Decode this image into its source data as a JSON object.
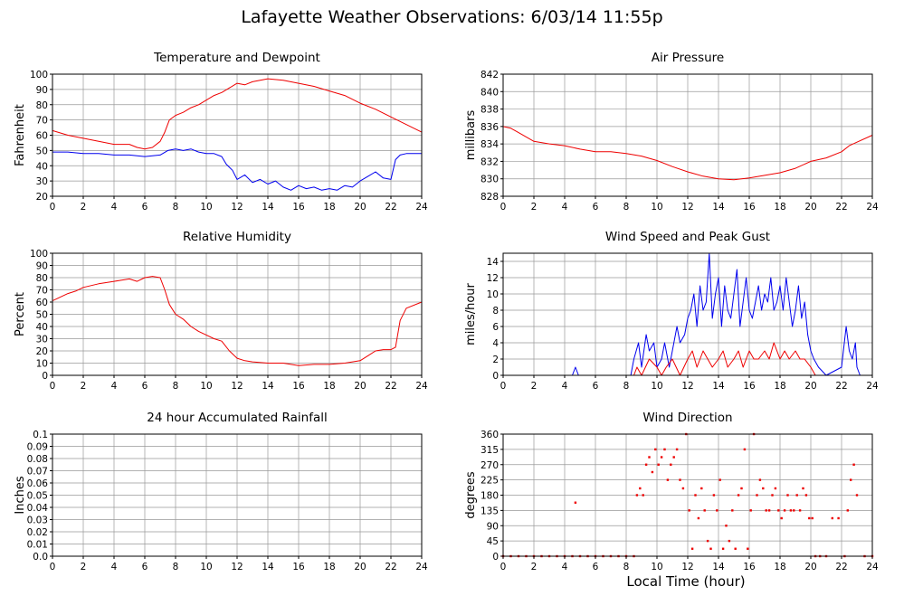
{
  "title": "Lafayette Weather Observations: 6/03/14 11:55p",
  "xlabel": "Local Time (hour)",
  "colors": {
    "series_red": "#ee0000",
    "series_blue": "#0000ee",
    "grid": "#999999",
    "frame": "#000000"
  },
  "chart_data": [
    {
      "id": "temp",
      "type": "line",
      "title": "Temperature and Dewpoint",
      "ylabel": "Fahrenheit",
      "xlim": [
        0,
        24
      ],
      "ylim": [
        20,
        100
      ],
      "xticks": [
        0,
        2,
        4,
        6,
        8,
        10,
        12,
        14,
        16,
        18,
        20,
        22,
        24
      ],
      "yticks": [
        20,
        30,
        40,
        50,
        60,
        70,
        80,
        90,
        100
      ],
      "series": [
        {
          "color": "red",
          "x": [
            0,
            1,
            2,
            3,
            4,
            5,
            5.5,
            6,
            6.5,
            7,
            7.3,
            7.6,
            8,
            8.5,
            9,
            9.5,
            10,
            10.5,
            11,
            11.5,
            12,
            12.5,
            13,
            13.5,
            14,
            15,
            16,
            17,
            18,
            19,
            20,
            21,
            22,
            23,
            24
          ],
          "y": [
            63,
            60,
            58,
            56,
            54,
            54,
            52,
            51,
            52,
            56,
            62,
            70,
            73,
            75,
            78,
            80,
            83,
            86,
            88,
            91,
            94,
            93,
            95,
            96,
            97,
            96,
            94,
            92,
            89,
            86,
            81,
            77,
            72,
            67,
            62
          ]
        },
        {
          "color": "blue",
          "x": [
            0,
            1,
            2,
            3,
            4,
            5,
            6,
            7,
            7.5,
            8,
            8.5,
            9,
            9.5,
            10,
            10.5,
            11,
            11.3,
            11.7,
            12,
            12.5,
            13,
            13.5,
            14,
            14.5,
            15,
            15.5,
            16,
            16.5,
            17,
            17.5,
            18,
            18.5,
            19,
            19.5,
            20,
            20.5,
            21,
            21.5,
            22,
            22.3,
            22.6,
            23,
            24
          ],
          "y": [
            49,
            49,
            48,
            48,
            47,
            47,
            46,
            47,
            50,
            51,
            50,
            51,
            49,
            48,
            48,
            46,
            41,
            37,
            31,
            34,
            29,
            31,
            28,
            30,
            26,
            24,
            27,
            25,
            26,
            24,
            25,
            24,
            27,
            26,
            30,
            33,
            36,
            32,
            31,
            44,
            47,
            48,
            48
          ]
        }
      ]
    },
    {
      "id": "pressure",
      "type": "line",
      "title": "Air Pressure",
      "ylabel": "millibars",
      "xlim": [
        0,
        24
      ],
      "ylim": [
        828,
        842
      ],
      "xticks": [
        0,
        2,
        4,
        6,
        8,
        10,
        12,
        14,
        16,
        18,
        20,
        22,
        24
      ],
      "yticks": [
        828,
        830,
        832,
        834,
        836,
        838,
        840,
        842
      ],
      "series": [
        {
          "color": "red",
          "x": [
            0,
            0.5,
            1,
            1.5,
            2,
            3,
            4,
            5,
            6,
            7,
            8,
            9,
            10,
            11,
            12,
            13,
            14,
            15,
            16,
            17,
            18,
            19,
            20,
            21,
            22,
            22.5,
            23,
            24
          ],
          "y": [
            836,
            835.8,
            835.3,
            834.8,
            834.3,
            834,
            833.8,
            833.4,
            833.1,
            833.1,
            832.9,
            832.6,
            832.1,
            831.4,
            830.8,
            830.3,
            830,
            829.9,
            830.1,
            830.4,
            830.7,
            831.2,
            832,
            832.4,
            833.1,
            833.8,
            834.2,
            835
          ]
        }
      ]
    },
    {
      "id": "humidity",
      "type": "line",
      "title": "Relative Humidity",
      "ylabel": "Percent",
      "xlim": [
        0,
        24
      ],
      "ylim": [
        0,
        100
      ],
      "xticks": [
        0,
        2,
        4,
        6,
        8,
        10,
        12,
        14,
        16,
        18,
        20,
        22,
        24
      ],
      "yticks": [
        0,
        10,
        20,
        30,
        40,
        50,
        60,
        70,
        80,
        90,
        100
      ],
      "series": [
        {
          "color": "red",
          "x": [
            0,
            0.5,
            1,
            1.5,
            2,
            3,
            4,
            4.5,
            5,
            5.5,
            6,
            6.5,
            7,
            7.3,
            7.6,
            8,
            8.5,
            9,
            9.5,
            10,
            10.5,
            11,
            11.5,
            12,
            12.5,
            13,
            14,
            15,
            16,
            17,
            18,
            19,
            20,
            20.5,
            21,
            21.5,
            22,
            22.3,
            22.6,
            23,
            24
          ],
          "y": [
            61,
            64,
            67,
            69,
            72,
            75,
            77,
            78,
            79,
            77,
            80,
            81,
            80,
            70,
            58,
            50,
            46,
            40,
            36,
            33,
            30,
            28,
            20,
            14,
            12,
            11,
            10,
            10,
            8,
            9,
            9,
            10,
            12,
            16,
            20,
            21,
            21,
            23,
            45,
            55,
            60
          ]
        }
      ]
    },
    {
      "id": "wind",
      "type": "line",
      "title": "Wind Speed and Peak Gust",
      "ylabel": "miles/hour",
      "xlim": [
        0,
        24
      ],
      "ylim": [
        0,
        15
      ],
      "xticks": [
        0,
        2,
        4,
        6,
        8,
        10,
        12,
        14,
        16,
        18,
        20,
        22,
        24
      ],
      "yticks": [
        0,
        2,
        4,
        6,
        8,
        10,
        12,
        14
      ],
      "series": [
        {
          "color": "blue",
          "x": [
            0,
            4.5,
            4.7,
            4.9,
            8.3,
            8.5,
            8.8,
            9,
            9.3,
            9.5,
            9.8,
            10,
            10.3,
            10.5,
            10.8,
            11,
            11.3,
            11.5,
            11.8,
            12,
            12.2,
            12.4,
            12.6,
            12.8,
            13,
            13.2,
            13.4,
            13.6,
            13.8,
            14,
            14.2,
            14.4,
            14.6,
            14.8,
            15,
            15.2,
            15.4,
            15.6,
            15.8,
            16,
            16.2,
            16.4,
            16.6,
            16.8,
            17,
            17.2,
            17.4,
            17.6,
            17.8,
            18,
            18.2,
            18.4,
            18.6,
            18.8,
            19,
            19.2,
            19.4,
            19.6,
            19.8,
            20,
            20.2,
            20.5,
            21,
            22,
            22.3,
            22.5,
            22.7,
            22.9,
            23,
            23.2,
            24
          ],
          "y": [
            0,
            0,
            1,
            0,
            0,
            2,
            4,
            1,
            5,
            3,
            4,
            1,
            2,
            4,
            1,
            3,
            6,
            4,
            5,
            7,
            8,
            10,
            6,
            11,
            8,
            9,
            15,
            7,
            10,
            12,
            6,
            11,
            8,
            7,
            10,
            13,
            6,
            9,
            12,
            8,
            7,
            9,
            11,
            8,
            10,
            9,
            12,
            8,
            9,
            11,
            8,
            12,
            9,
            6,
            8,
            11,
            7,
            9,
            5,
            3,
            2,
            1,
            0,
            1,
            6,
            3,
            2,
            4,
            1,
            0,
            0
          ]
        },
        {
          "color": "red",
          "x": [
            0,
            8.5,
            8.7,
            9,
            9.5,
            10,
            10.3,
            10.6,
            11,
            11.5,
            12,
            12.3,
            12.6,
            13,
            13.3,
            13.6,
            14,
            14.3,
            14.6,
            15,
            15.3,
            15.6,
            16,
            16.3,
            16.6,
            17,
            17.3,
            17.6,
            18,
            18.3,
            18.6,
            19,
            19.3,
            19.6,
            20,
            20.3,
            24
          ],
          "y": [
            0,
            0,
            1,
            0,
            2,
            1,
            0,
            1,
            2,
            0,
            2,
            3,
            1,
            3,
            2,
            1,
            2,
            3,
            1,
            2,
            3,
            1,
            3,
            2,
            2,
            3,
            2,
            4,
            2,
            3,
            2,
            3,
            2,
            2,
            1,
            0,
            0
          ]
        }
      ]
    },
    {
      "id": "rain",
      "type": "line",
      "title": "24 hour Accumulated Rainfall",
      "ylabel": "Inches",
      "xlim": [
        0,
        24
      ],
      "ylim": [
        0.0,
        0.1
      ],
      "xticks": [
        0,
        2,
        4,
        6,
        8,
        10,
        12,
        14,
        16,
        18,
        20,
        22,
        24
      ],
      "yticks": [
        0.0,
        0.01,
        0.02,
        0.03,
        0.04,
        0.05,
        0.06,
        0.07,
        0.08,
        0.09,
        0.1
      ],
      "ytick_labels": [
        "0.0",
        "0.01",
        "0.02",
        "0.03",
        "0.04",
        "0.05",
        "0.06",
        "0.07",
        "0.08",
        "0.09",
        "0.1"
      ],
      "series": [
        {
          "color": "red",
          "x": [
            0,
            24
          ],
          "y": [
            0,
            0
          ]
        }
      ]
    },
    {
      "id": "direction",
      "type": "scatter",
      "title": "Wind Direction",
      "ylabel": "degrees",
      "xlim": [
        0,
        24
      ],
      "ylim": [
        0,
        360
      ],
      "xticks": [
        0,
        2,
        4,
        6,
        8,
        10,
        12,
        14,
        16,
        18,
        20,
        22,
        24
      ],
      "yticks": [
        0,
        45,
        90,
        135,
        180,
        225,
        270,
        315,
        360
      ],
      "series": [
        {
          "color": "red",
          "x": [
            0,
            0.5,
            1,
            1.5,
            2,
            2.5,
            3,
            3.5,
            4,
            4.5,
            4.7,
            5,
            5.5,
            6,
            6.5,
            7,
            7.5,
            8,
            8.5,
            8.7,
            8.9,
            9.1,
            9.3,
            9.5,
            9.7,
            9.9,
            10.1,
            10.3,
            10.5,
            10.7,
            10.9,
            11.1,
            11.3,
            11.5,
            11.7,
            11.9,
            12.1,
            12.3,
            12.5,
            12.7,
            12.9,
            13.1,
            13.3,
            13.5,
            13.7,
            13.9,
            14.1,
            14.3,
            14.5,
            14.7,
            14.9,
            15.1,
            15.3,
            15.5,
            15.7,
            15.9,
            16.1,
            16.3,
            16.5,
            16.7,
            16.9,
            17.1,
            17.3,
            17.5,
            17.7,
            17.9,
            18.1,
            18.3,
            18.5,
            18.7,
            18.9,
            19.1,
            19.3,
            19.5,
            19.7,
            19.9,
            20.1,
            20.3,
            20.6,
            21,
            21.4,
            21.8,
            22.2,
            22.4,
            22.6,
            22.8,
            23,
            23.5,
            24
          ],
          "y": [
            0,
            0,
            0,
            0,
            0,
            0,
            0,
            0,
            0,
            0,
            158,
            0,
            0,
            0,
            0,
            0,
            0,
            0,
            0,
            180,
            200,
            180,
            270,
            292,
            248,
            315,
            270,
            292,
            315,
            225,
            270,
            292,
            315,
            225,
            200,
            360,
            135,
            22,
            180,
            112,
            200,
            135,
            45,
            22,
            180,
            135,
            225,
            22,
            90,
            45,
            135,
            22,
            180,
            200,
            315,
            22,
            135,
            360,
            180,
            225,
            200,
            135,
            135,
            180,
            200,
            135,
            112,
            135,
            180,
            135,
            135,
            180,
            135,
            200,
            180,
            112,
            112,
            0,
            0,
            0,
            112,
            112,
            0,
            135,
            225,
            270,
            180,
            0,
            0
          ]
        }
      ]
    }
  ]
}
